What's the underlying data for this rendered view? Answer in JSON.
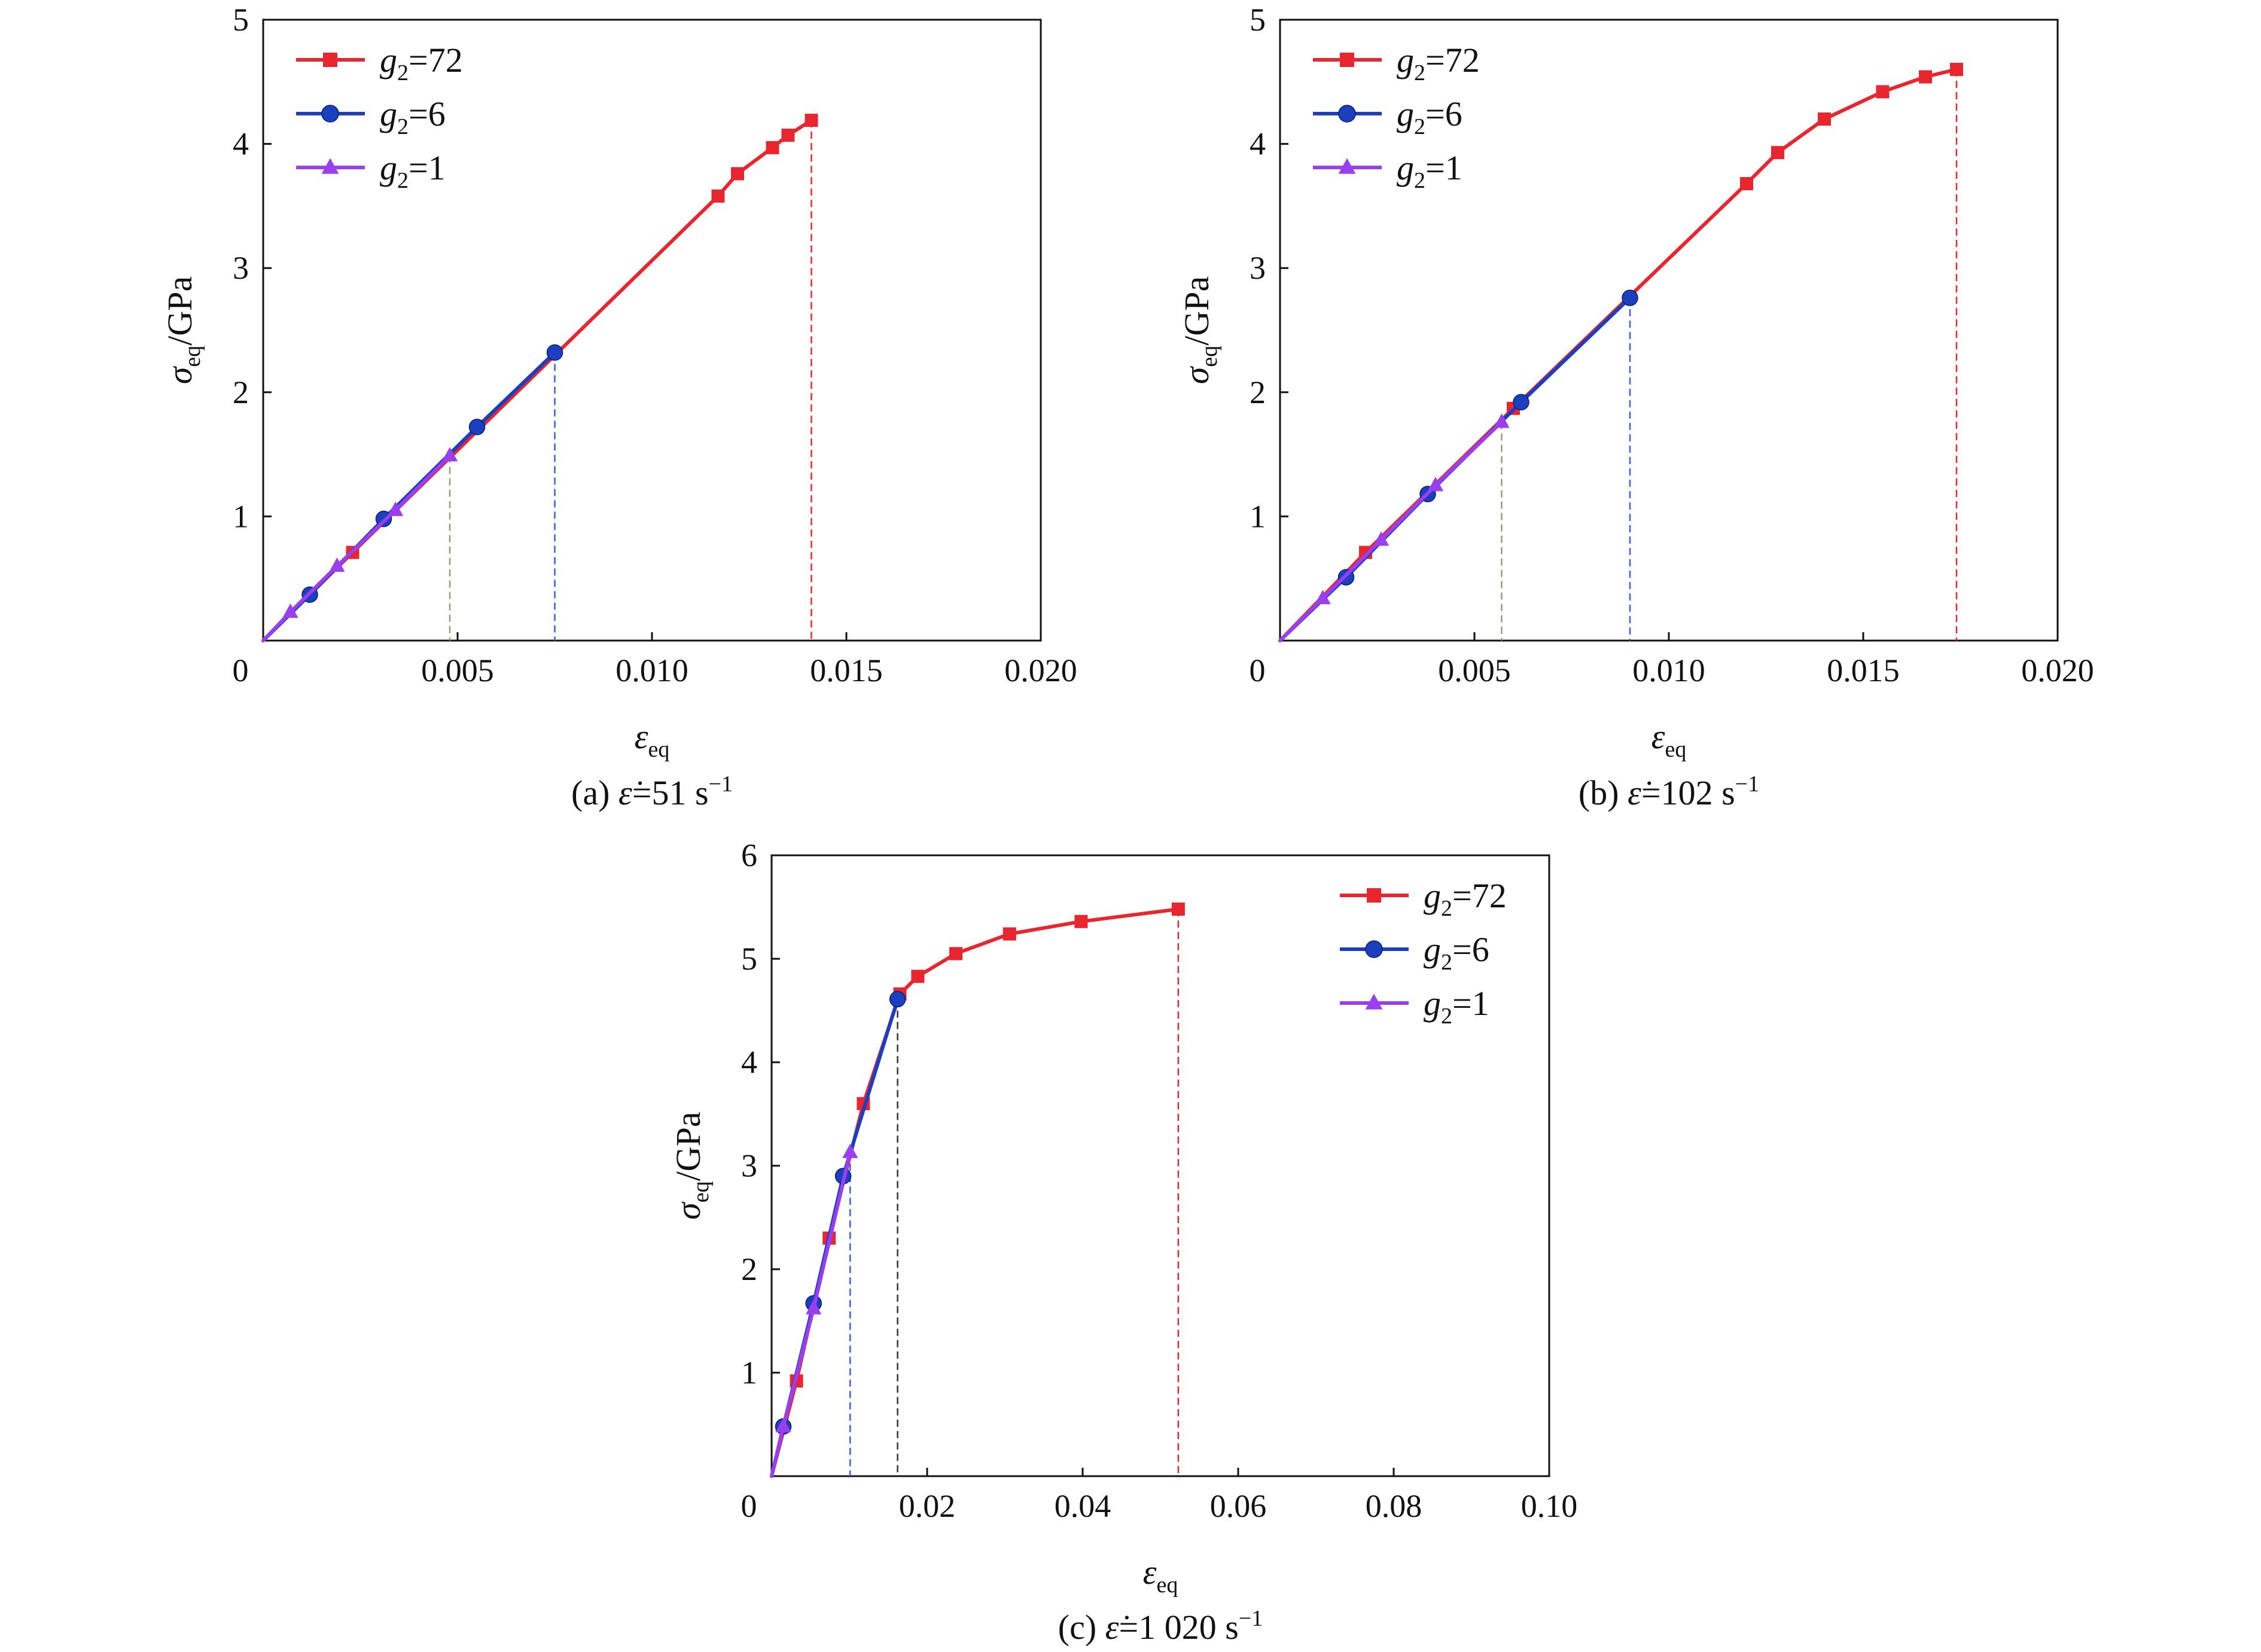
{
  "chart_data": [
    {
      "id": "a",
      "type": "line",
      "caption": {
        "prefix": "(a) ",
        "symbol": "ε̇",
        "value": "=51 s",
        "sup": "−1"
      },
      "xlabel": {
        "symbol": "ε",
        "sub": "eq"
      },
      "ylabel": {
        "symbol": "σ",
        "sub": "eq",
        "rest": "/GPa"
      },
      "xlim": [
        0,
        0.02
      ],
      "ylim": [
        0,
        5
      ],
      "xticks": [
        0,
        0.005,
        0.01,
        0.015,
        0.02
      ],
      "xtick_labels": [
        "0",
        "0.005",
        "0.010",
        "0.015",
        "0.020"
      ],
      "yticks": [
        1,
        2,
        3,
        4,
        5
      ],
      "ytick_labels": [
        "1",
        "2",
        "3",
        "4",
        "5"
      ],
      "legend_position": "top-left",
      "grid": false,
      "series": [
        {
          "key": "g72",
          "legend_base": "g",
          "legend_sub": "2",
          "legend_rest": "=72",
          "color": "#e8262f",
          "marker": "square",
          "x": [
            0,
            0.0023,
            0.0117,
            0.0122,
            0.0131,
            0.0135,
            0.0141
          ],
          "y": [
            0,
            0.71,
            3.58,
            3.76,
            3.97,
            4.07,
            4.19
          ]
        },
        {
          "key": "g6",
          "legend_base": "g",
          "legend_sub": "2",
          "legend_rest": "=6",
          "color": "#1b3fbf",
          "marker": "circle",
          "x": [
            0,
            0.0012,
            0.0031,
            0.0055,
            0.0075
          ],
          "y": [
            0,
            0.37,
            0.98,
            1.72,
            2.32
          ]
        },
        {
          "key": "g1",
          "legend_base": "g",
          "legend_sub": "2",
          "legend_rest": "=1",
          "color": "#9a3ff0",
          "marker": "triangle",
          "x": [
            0,
            0.0007,
            0.0019,
            0.0034,
            0.0048
          ],
          "y": [
            0,
            0.23,
            0.6,
            1.05,
            1.49
          ]
        }
      ],
      "drop_lines": [
        {
          "x": 0.0048,
          "y": 1.49,
          "color": "#9a9a7a"
        },
        {
          "x": 0.0075,
          "y": 2.32,
          "color": "#3b5fe0"
        },
        {
          "x": 0.0141,
          "y": 4.19,
          "color": "#e8262f"
        }
      ]
    },
    {
      "id": "b",
      "type": "line",
      "caption": {
        "prefix": "(b) ",
        "symbol": "ε̇",
        "value": "=102 s",
        "sup": "−1"
      },
      "xlabel": {
        "symbol": "ε",
        "sub": "eq"
      },
      "ylabel": {
        "symbol": "σ",
        "sub": "eq",
        "rest": "/GPa"
      },
      "xlim": [
        0,
        0.02
      ],
      "ylim": [
        0,
        5
      ],
      "xticks": [
        0,
        0.005,
        0.01,
        0.015,
        0.02
      ],
      "xtick_labels": [
        "0",
        "0.005",
        "0.010",
        "0.015",
        "0.020"
      ],
      "yticks": [
        1,
        2,
        3,
        4,
        5
      ],
      "ytick_labels": [
        "1",
        "2",
        "3",
        "4",
        "5"
      ],
      "legend_position": "top-left",
      "grid": false,
      "series": [
        {
          "key": "g72",
          "legend_base": "g",
          "legend_sub": "2",
          "legend_rest": "=72",
          "color": "#e8262f",
          "marker": "square",
          "x": [
            0,
            0.0022,
            0.006,
            0.012,
            0.0128,
            0.014,
            0.0155,
            0.0166,
            0.0174
          ],
          "y": [
            0,
            0.71,
            1.87,
            3.68,
            3.93,
            4.2,
            4.42,
            4.54,
            4.6
          ]
        },
        {
          "key": "g6",
          "legend_base": "g",
          "legend_sub": "2",
          "legend_rest": "=6",
          "color": "#1b3fbf",
          "marker": "circle",
          "x": [
            0,
            0.0017,
            0.0038,
            0.0062,
            0.009
          ],
          "y": [
            0,
            0.51,
            1.18,
            1.92,
            2.76
          ]
        },
        {
          "key": "g1",
          "legend_base": "g",
          "legend_sub": "2",
          "legend_rest": "=1",
          "color": "#9a3ff0",
          "marker": "triangle",
          "x": [
            0,
            0.0011,
            0.0026,
            0.004,
            0.0057
          ],
          "y": [
            0,
            0.34,
            0.81,
            1.25,
            1.76
          ]
        }
      ],
      "drop_lines": [
        {
          "x": 0.0057,
          "y": 1.76,
          "color": "#9a9a7a"
        },
        {
          "x": 0.009,
          "y": 2.76,
          "color": "#3b5fe0"
        },
        {
          "x": 0.0174,
          "y": 4.6,
          "color": "#e8262f"
        }
      ]
    },
    {
      "id": "c",
      "type": "line",
      "caption": {
        "prefix": "(c) ",
        "symbol": "ε̇",
        "value": "=1 020 s",
        "sup": "−1"
      },
      "xlabel": {
        "symbol": "ε",
        "sub": "eq"
      },
      "ylabel": {
        "symbol": "σ",
        "sub": "eq",
        "rest": "/GPa"
      },
      "xlim": [
        0,
        0.1
      ],
      "ylim": [
        0,
        6
      ],
      "xticks": [
        0,
        0.02,
        0.04,
        0.06,
        0.08,
        0.1
      ],
      "xtick_labels": [
        "0",
        "0.02",
        "0.04",
        "0.06",
        "0.08",
        "0.10"
      ],
      "yticks": [
        1,
        2,
        3,
        4,
        5,
        6
      ],
      "ytick_labels": [
        "1",
        "2",
        "3",
        "4",
        "5",
        "6"
      ],
      "legend_position": "top-right",
      "grid": false,
      "series": [
        {
          "key": "g72",
          "legend_base": "g",
          "legend_sub": "2",
          "legend_rest": "=72",
          "color": "#e8262f",
          "marker": "square",
          "x": [
            0,
            0.0032,
            0.0074,
            0.0118,
            0.0165,
            0.0188,
            0.0237,
            0.0306,
            0.0398,
            0.0523
          ],
          "y": [
            0,
            0.92,
            2.3,
            3.6,
            4.66,
            4.83,
            5.05,
            5.24,
            5.36,
            5.48
          ]
        },
        {
          "key": "g6",
          "legend_base": "g",
          "legend_sub": "2",
          "legend_rest": "=6",
          "color": "#1b3fbf",
          "marker": "circle",
          "x": [
            0,
            0.0015,
            0.0054,
            0.0092,
            0.0162
          ],
          "y": [
            0,
            0.48,
            1.67,
            2.9,
            4.61
          ]
        },
        {
          "key": "g1",
          "legend_base": "g",
          "legend_sub": "2",
          "legend_rest": "=1",
          "color": "#9a3ff0",
          "marker": "triangle",
          "x": [
            0,
            0.0015,
            0.0054,
            0.0101
          ],
          "y": [
            0,
            0.48,
            1.62,
            3.13
          ]
        }
      ],
      "drop_lines": [
        {
          "x": 0.0101,
          "y": 3.13,
          "color": "#3b5fe0"
        },
        {
          "x": 0.0162,
          "y": 4.61,
          "color": "#333333"
        },
        {
          "x": 0.0523,
          "y": 5.48,
          "color": "#e8262f"
        }
      ]
    }
  ]
}
